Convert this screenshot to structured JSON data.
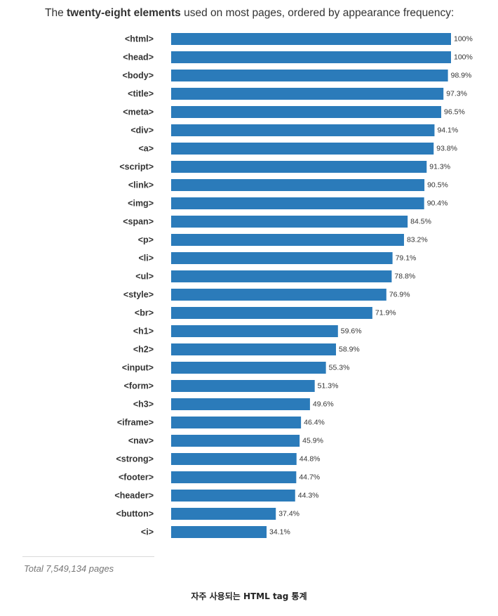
{
  "heading": {
    "prefix": "The ",
    "emphasis": "twenty-eight elements",
    "suffix": " used on most pages, ordered by appearance frequency:"
  },
  "chart_data": {
    "type": "bar",
    "orientation": "horizontal",
    "title": "The twenty-eight elements used on most pages, ordered by appearance frequency:",
    "categories": [
      "<html>",
      "<head>",
      "<body>",
      "<title>",
      "<meta>",
      "<div>",
      "<a>",
      "<script>",
      "<link>",
      "<img>",
      "<span>",
      "<p>",
      "<li>",
      "<ul>",
      "<style>",
      "<br>",
      "<h1>",
      "<h2>",
      "<input>",
      "<form>",
      "<h3>",
      "<iframe>",
      "<nav>",
      "<strong>",
      "<footer>",
      "<header>",
      "<button>",
      "<i>"
    ],
    "values": [
      100,
      100,
      98.9,
      97.3,
      96.5,
      94.1,
      93.8,
      91.3,
      90.5,
      90.4,
      84.5,
      83.2,
      79.1,
      78.8,
      76.9,
      71.9,
      59.6,
      58.9,
      55.3,
      51.3,
      49.6,
      46.4,
      45.9,
      44.8,
      44.7,
      44.3,
      37.4,
      34.1
    ],
    "value_labels": [
      "100%",
      "100%",
      "98.9%",
      "97.3%",
      "96.5%",
      "94.1%",
      "93.8%",
      "91.3%",
      "90.5%",
      "90.4%",
      "84.5%",
      "83.2%",
      "79.1%",
      "78.8%",
      "76.9%",
      "71.9%",
      "59.6%",
      "58.9%",
      "55.3%",
      "51.3%",
      "49.6%",
      "46.4%",
      "45.9%",
      "44.8%",
      "44.7%",
      "44.3%",
      "37.4%",
      "34.1%"
    ],
    "unit": "%",
    "xlim": [
      0,
      100
    ],
    "bar_color": "#2b7bba",
    "grid": false
  },
  "footer": {
    "total": "Total 7,549,134 pages",
    "caption": "자주 사용되는 HTML tag 통계"
  }
}
